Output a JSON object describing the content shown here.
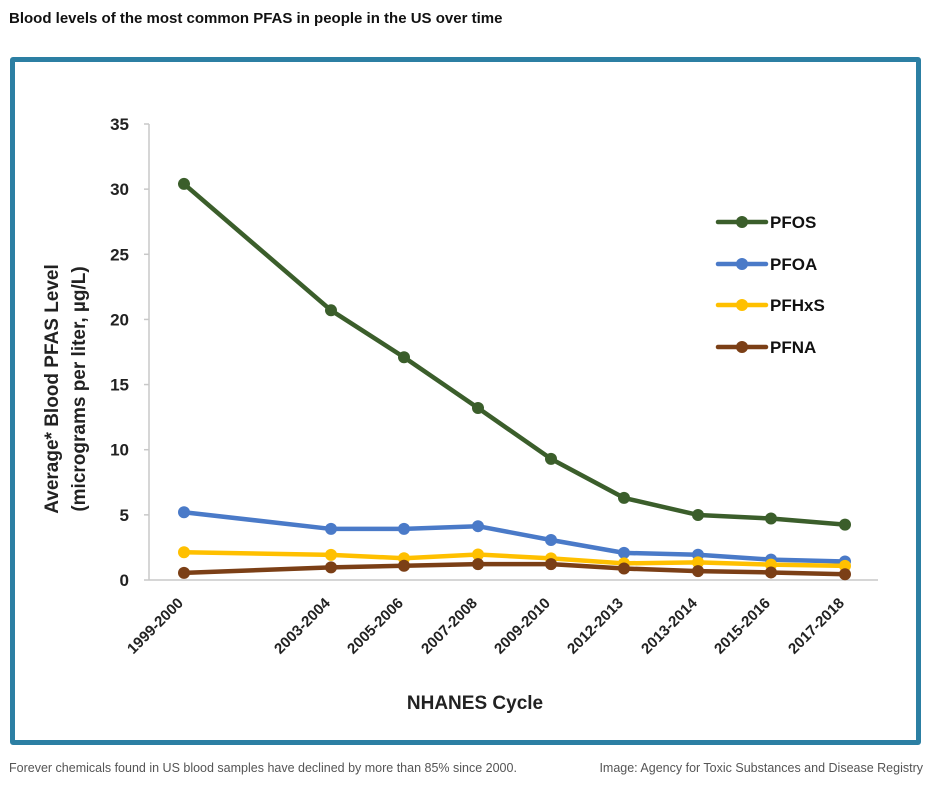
{
  "header": {
    "title": "Blood levels of the most common PFAS in people in the US over time"
  },
  "footer": {
    "caption": "Forever chemicals found in US blood samples have declined by more than 85% since 2000.",
    "credit": "Image: Agency for Toxic Substances and Disease Registry"
  },
  "colors": {
    "frame": "#2c7fa3"
  },
  "chart_data": {
    "type": "line",
    "title": "",
    "xlabel": "NHANES Cycle",
    "ylabel": "Average* Blood PFAS Level",
    "ylabel_line2": "(micrograms per liter, µg/L)",
    "ylim": [
      0,
      35
    ],
    "yticks": [
      0,
      5,
      10,
      15,
      20,
      25,
      30,
      35
    ],
    "grid": false,
    "legend_position": "right",
    "categories": [
      "1999-2000",
      "2003-2004",
      "2005-2006",
      "2007-2008",
      "2009-2010",
      "2012-2013",
      "2013-2014",
      "2015-2016",
      "2017-2018"
    ],
    "series": [
      {
        "name": "PFOS",
        "color": "#3b5e2b",
        "values": [
          30.4,
          20.7,
          17.1,
          13.2,
          9.3,
          6.3,
          4.99,
          4.72,
          4.25
        ]
      },
      {
        "name": "PFOA",
        "color": "#4a7ac8",
        "values": [
          5.2,
          3.92,
          3.92,
          4.13,
          3.07,
          2.08,
          1.94,
          1.56,
          1.42
        ]
      },
      {
        "name": "PFHxS",
        "color": "#ffc000",
        "values": [
          2.13,
          1.93,
          1.67,
          1.96,
          1.66,
          1.28,
          1.35,
          1.18,
          1.08
        ]
      },
      {
        "name": "PFNA",
        "color": "#7b3f16",
        "values": [
          0.55,
          0.97,
          1.09,
          1.22,
          1.22,
          0.88,
          0.68,
          0.58,
          0.44
        ]
      }
    ]
  }
}
